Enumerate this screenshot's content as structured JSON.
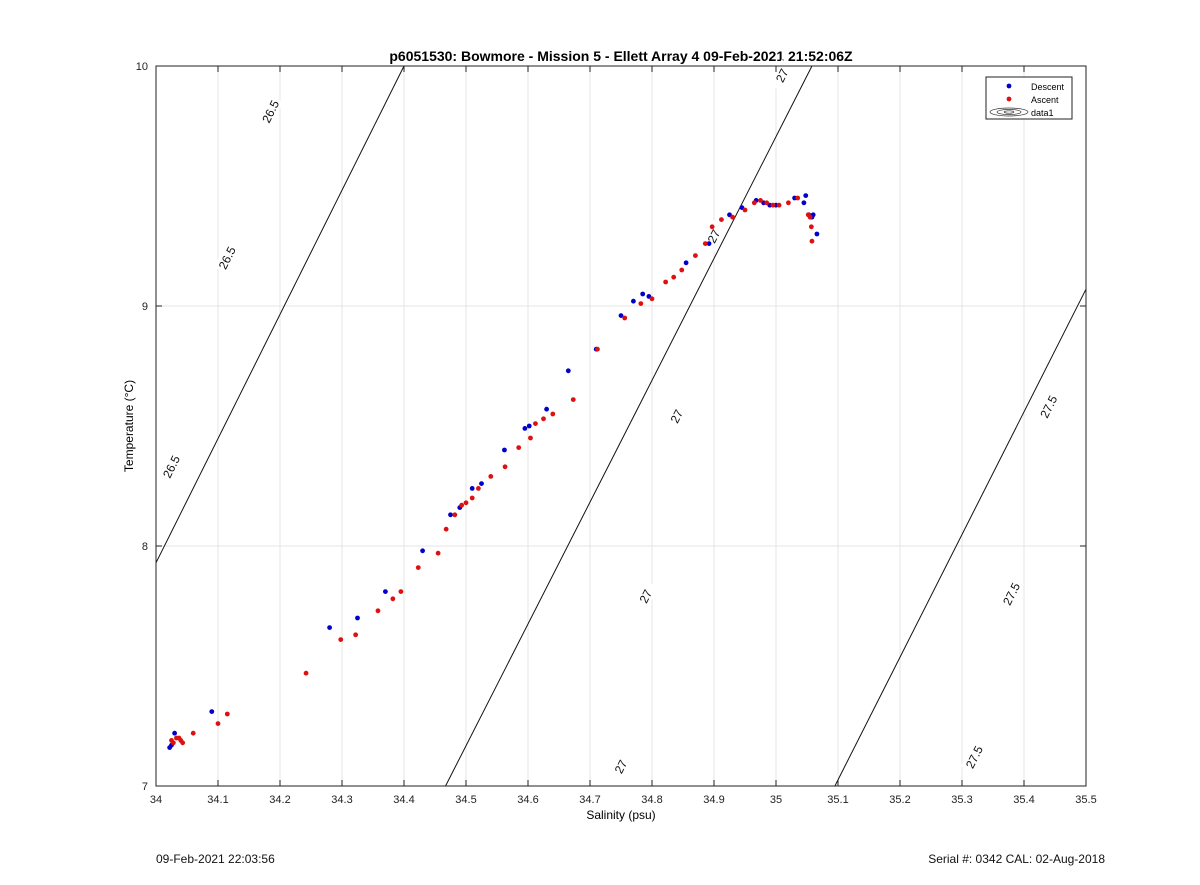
{
  "chart_data": {
    "type": "scatter",
    "title": "p6051530: Bowmore - Mission 5 - Ellett Array 4 09-Feb-2021 21:52:06Z",
    "xlabel": "Salinity (psu)",
    "ylabel": "Temperature (°C)",
    "xlim": [
      34,
      35.5
    ],
    "ylim": [
      7,
      10
    ],
    "xticks": [
      "34",
      "34.1",
      "34.2",
      "34.3",
      "34.4",
      "34.5",
      "34.6",
      "34.7",
      "34.8",
      "34.9",
      "35",
      "35.1",
      "35.2",
      "35.3",
      "35.4",
      "35.5"
    ],
    "yticks": [
      "7",
      "8",
      "9",
      "10"
    ],
    "grid": true,
    "legend_position": "top-right",
    "legend": [
      "Descent",
      "Ascent",
      "data1"
    ],
    "series": [
      {
        "name": "Descent",
        "color": "#0000cc",
        "points": [
          [
            34.022,
            7.16
          ],
          [
            34.025,
            7.17
          ],
          [
            34.03,
            7.22
          ],
          [
            34.09,
            7.31
          ],
          [
            34.28,
            7.66
          ],
          [
            34.325,
            7.7
          ],
          [
            34.37,
            7.81
          ],
          [
            34.43,
            7.98
          ],
          [
            34.475,
            8.13
          ],
          [
            34.49,
            8.16
          ],
          [
            34.51,
            8.24
          ],
          [
            34.525,
            8.26
          ],
          [
            34.562,
            8.4
          ],
          [
            34.595,
            8.49
          ],
          [
            34.602,
            8.5
          ],
          [
            34.63,
            8.57
          ],
          [
            34.665,
            8.73
          ],
          [
            34.71,
            8.82
          ],
          [
            34.75,
            8.96
          ],
          [
            34.77,
            9.02
          ],
          [
            34.785,
            9.05
          ],
          [
            34.795,
            9.04
          ],
          [
            34.855,
            9.18
          ],
          [
            34.892,
            9.26
          ],
          [
            34.925,
            9.38
          ],
          [
            34.945,
            9.41
          ],
          [
            34.968,
            9.44
          ],
          [
            34.98,
            9.43
          ],
          [
            34.99,
            9.42
          ],
          [
            35.0,
            9.42
          ],
          [
            35.03,
            9.45
          ],
          [
            35.045,
            9.43
          ],
          [
            35.048,
            9.46
          ],
          [
            35.053,
            9.38
          ],
          [
            35.058,
            9.37
          ],
          [
            35.06,
            9.38
          ],
          [
            35.066,
            9.3
          ]
        ]
      },
      {
        "name": "Ascent",
        "color": "#dd1111",
        "points": [
          [
            34.025,
            7.19
          ],
          [
            34.028,
            7.18
          ],
          [
            34.033,
            7.2
          ],
          [
            34.037,
            7.2
          ],
          [
            34.04,
            7.19
          ],
          [
            34.043,
            7.18
          ],
          [
            34.06,
            7.22
          ],
          [
            34.1,
            7.26
          ],
          [
            34.115,
            7.3
          ],
          [
            34.242,
            7.47
          ],
          [
            34.298,
            7.61
          ],
          [
            34.322,
            7.63
          ],
          [
            34.358,
            7.73
          ],
          [
            34.382,
            7.78
          ],
          [
            34.395,
            7.81
          ],
          [
            34.423,
            7.91
          ],
          [
            34.455,
            7.97
          ],
          [
            34.468,
            8.07
          ],
          [
            34.482,
            8.13
          ],
          [
            34.493,
            8.17
          ],
          [
            34.5,
            8.18
          ],
          [
            34.51,
            8.2
          ],
          [
            34.52,
            8.24
          ],
          [
            34.54,
            8.29
          ],
          [
            34.563,
            8.33
          ],
          [
            34.585,
            8.41
          ],
          [
            34.604,
            8.45
          ],
          [
            34.612,
            8.51
          ],
          [
            34.625,
            8.53
          ],
          [
            34.64,
            8.55
          ],
          [
            34.673,
            8.61
          ],
          [
            34.712,
            8.82
          ],
          [
            34.756,
            8.95
          ],
          [
            34.782,
            9.01
          ],
          [
            34.8,
            9.03
          ],
          [
            34.822,
            9.1
          ],
          [
            34.835,
            9.12
          ],
          [
            34.848,
            9.15
          ],
          [
            34.87,
            9.21
          ],
          [
            34.886,
            9.26
          ],
          [
            34.897,
            9.33
          ],
          [
            34.912,
            9.36
          ],
          [
            34.93,
            9.37
          ],
          [
            34.95,
            9.4
          ],
          [
            34.965,
            9.43
          ],
          [
            34.975,
            9.44
          ],
          [
            34.985,
            9.43
          ],
          [
            34.995,
            9.42
          ],
          [
            35.005,
            9.42
          ],
          [
            35.02,
            9.43
          ],
          [
            35.035,
            9.45
          ],
          [
            35.052,
            9.38
          ],
          [
            35.055,
            9.37
          ],
          [
            35.057,
            9.33
          ],
          [
            35.058,
            9.27
          ]
        ]
      }
    ],
    "isopycnals": [
      {
        "sigma": 26.5,
        "start": [
          34.0,
          7.93
        ],
        "end": [
          34.4,
          10.0
        ],
        "labels": [
          {
            "text": "26.5",
            "x": 34.185,
            "y": 9.81
          },
          {
            "text": "26.5",
            "x": 34.115,
            "y": 9.2
          },
          {
            "text": "26.5",
            "x": 34.025,
            "y": 8.33
          }
        ]
      },
      {
        "sigma": 27,
        "start": [
          34.467,
          7.0
        ],
        "end": [
          35.058,
          10.0
        ],
        "labels": [
          {
            "text": "27",
            "x": 35.01,
            "y": 9.96
          },
          {
            "text": "27",
            "x": 34.9,
            "y": 9.29
          },
          {
            "text": "27",
            "x": 34.84,
            "y": 8.54
          },
          {
            "text": "27",
            "x": 34.79,
            "y": 7.79
          },
          {
            "text": "27",
            "x": 34.75,
            "y": 7.08
          }
        ]
      },
      {
        "sigma": 27.5,
        "start": [
          35.095,
          7.0
        ],
        "end": [
          35.5,
          9.07
        ],
        "labels": [
          {
            "text": "27.5",
            "x": 35.44,
            "y": 8.58
          },
          {
            "text": "27.5",
            "x": 35.38,
            "y": 7.8
          },
          {
            "text": "27.5",
            "x": 35.32,
            "y": 7.12
          }
        ]
      }
    ]
  },
  "footer": {
    "timestamp": "09-Feb-2021 22:03:56",
    "serial": "Serial #: 0342  CAL: 02-Aug-2018"
  }
}
